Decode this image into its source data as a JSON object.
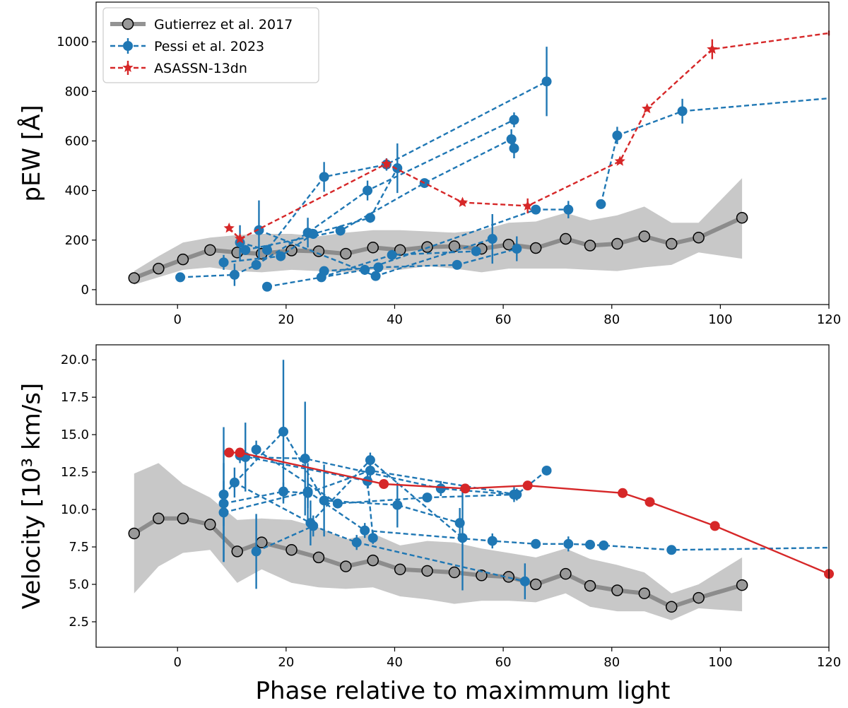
{
  "chart_data": [
    {
      "type": "line",
      "panel": "top",
      "xlabel": "",
      "ylabel": "pEW [Å]",
      "xlim": [
        -15,
        120
      ],
      "ylim": [
        -60,
        1160
      ],
      "xticks": [
        0,
        20,
        40,
        60,
        80,
        100,
        120
      ],
      "yticks": [
        0,
        200,
        400,
        600,
        800,
        1000
      ],
      "legend": {
        "placement": "top-left",
        "entries": [
          {
            "label": "Gutierrez et al. 2017",
            "style": "template",
            "color": "#888888"
          },
          {
            "label": "Pessi et al. 2023",
            "style": "blue",
            "color": "#1f77b4"
          },
          {
            "label": "ASASSN-13dn",
            "style": "red",
            "color": "#d62728"
          }
        ]
      },
      "template": {
        "name": "Gutierrez et al. 2017",
        "color": "#888888",
        "x": [
          -8,
          -3.5,
          1,
          6,
          11,
          15.5,
          21,
          26,
          31,
          36,
          41,
          46,
          51,
          56,
          61,
          66,
          71.5,
          76,
          81,
          86,
          91,
          96,
          104
        ],
        "y": [
          47,
          85,
          122,
          160,
          150,
          145,
          158,
          155,
          145,
          170,
          160,
          172,
          175,
          165,
          182,
          168,
          205,
          178,
          185,
          215,
          185,
          210,
          290
        ],
        "band_lower": [
          20,
          50,
          80,
          90,
          75,
          70,
          80,
          75,
          70,
          80,
          80,
          95,
          85,
          70,
          85,
          85,
          85,
          80,
          75,
          90,
          100,
          150,
          125
        ],
        "band_upper": [
          75,
          135,
          190,
          210,
          220,
          225,
          225,
          215,
          230,
          240,
          240,
          235,
          230,
          240,
          270,
          275,
          310,
          280,
          300,
          335,
          270,
          270,
          450
        ]
      },
      "series": [
        {
          "name": "Pessi et al. 2023",
          "color": "#1f77b4",
          "x": [
            0.5,
            10.5,
            14.5,
            24,
            35,
            62
          ],
          "y": [
            50,
            60,
            100,
            230,
            400,
            685
          ],
          "yerr": [
            10,
            45,
            15,
            60,
            40,
            30
          ]
        },
        {
          "color": "#1f77b4",
          "x": [
            8.5,
            19,
            25,
            35.5,
            40.5
          ],
          "y": [
            110,
            135,
            225,
            290,
            490
          ],
          "yerr": [
            30,
            15,
            20,
            20,
            100
          ]
        },
        {
          "color": "#1f77b4",
          "x": [
            11.5,
            16.5,
            27,
            38.5,
            68
          ],
          "y": [
            190,
            160,
            455,
            505,
            840
          ],
          "yerr": [
            70,
            20,
            60,
            25,
            140
          ]
        },
        {
          "color": "#1f77b4",
          "x": [
            12.5,
            30,
            45.5,
            61.5,
            62
          ],
          "y": [
            160,
            238,
            430,
            607,
            570
          ],
          "yerr": [
            20,
            15,
            15,
            40,
            40
          ]
        },
        {
          "color": "#1f77b4",
          "x": [
            15,
            36.5,
            58
          ],
          "y": [
            240,
            55,
            205
          ],
          "yerr": [
            120,
            15,
            100
          ]
        },
        {
          "color": "#1f77b4",
          "x": [
            16.5,
            34.5,
            66,
            72
          ],
          "y": [
            12,
            80,
            323,
            323
          ],
          "yerr": [
            5,
            20,
            15,
            35
          ]
        },
        {
          "color": "#1f77b4",
          "x": [
            26.5,
            39.5,
            55
          ],
          "y": [
            50,
            140,
            155
          ],
          "yerr": [
            10,
            20,
            15
          ]
        },
        {
          "color": "#1f77b4",
          "x": [
            27,
            37,
            51.5,
            62.5
          ],
          "y": [
            75,
            90,
            100,
            165
          ],
          "yerr": [
            15,
            15,
            15,
            50
          ]
        },
        {
          "color": "#1f77b4",
          "x": [
            78,
            81,
            93,
            120
          ],
          "y": [
            345,
            622,
            720,
            772
          ],
          "yerr": [
            10,
            35,
            50,
            0
          ]
        }
      ],
      "asassn": {
        "name": "ASASSN-13dn",
        "color": "#d62728",
        "x": [
          9.5,
          11.5,
          38.5,
          52.5,
          64.5,
          81.5,
          86.5,
          98.5,
          120
        ],
        "y": [
          248,
          205,
          508,
          352,
          338,
          518,
          730,
          970,
          1035
        ],
        "yerr": [
          10,
          10,
          20,
          10,
          30,
          10,
          10,
          40,
          10
        ]
      }
    },
    {
      "type": "line",
      "panel": "bottom",
      "xlabel": "Phase relative to maximmum light",
      "ylabel": "Velocity [10³ km/s]",
      "xlim": [
        -15,
        120
      ],
      "ylim": [
        0.8,
        21.0
      ],
      "xticks": [
        0,
        20,
        40,
        60,
        80,
        100,
        120
      ],
      "yticks": [
        2.5,
        5.0,
        7.5,
        10.0,
        12.5,
        15.0,
        17.5,
        20.0
      ],
      "template": {
        "color": "#888888",
        "x": [
          -8,
          -3.5,
          1,
          6,
          11,
          15.5,
          21,
          26,
          31,
          36,
          41,
          46,
          51,
          56,
          61,
          66,
          71.5,
          76,
          81,
          86,
          91,
          96,
          104
        ],
        "y": [
          8.4,
          9.4,
          9.4,
          9.0,
          7.2,
          7.8,
          7.3,
          6.8,
          6.2,
          6.6,
          6.0,
          5.9,
          5.8,
          5.6,
          5.5,
          5.0,
          5.7,
          4.9,
          4.6,
          4.4,
          3.5,
          4.1,
          4.95
        ],
        "band_lower": [
          4.4,
          6.2,
          7.1,
          7.3,
          5.1,
          6.0,
          5.1,
          4.8,
          4.7,
          4.8,
          4.2,
          4.0,
          3.7,
          3.9,
          3.9,
          3.8,
          4.4,
          3.5,
          3.2,
          3.2,
          2.6,
          3.4,
          3.2
        ],
        "band_upper": [
          12.4,
          13.1,
          11.7,
          10.8,
          9.3,
          9.4,
          9.3,
          8.8,
          8.0,
          8.4,
          7.6,
          7.9,
          7.8,
          7.4,
          7.1,
          6.8,
          7.4,
          6.7,
          6.3,
          5.8,
          4.4,
          5.0,
          6.8
        ]
      },
      "series": [
        {
          "color": "#1f77b4",
          "x": [
            8.5,
            19.5,
            24,
            35.5,
            62.5,
            68
          ],
          "y": [
            10.4,
            11.2,
            11.1,
            12.6,
            11.0,
            12.6
          ],
          "yerr": [
            1.5,
            0.6,
            1.0,
            0.9,
            0.4,
            0.3
          ]
        },
        {
          "color": "#1f77b4",
          "x": [
            8.5,
            19.5,
            27,
            40.5,
            52
          ],
          "y": [
            11.0,
            15.2,
            10.6,
            10.3,
            9.1
          ],
          "yerr": [
            4.5,
            4.8,
            2.4,
            1.5,
            1.0
          ]
        },
        {
          "color": "#1f77b4",
          "x": [
            10.5,
            24.5,
            35.5,
            52.5
          ],
          "y": [
            11.8,
            9.1,
            13.3,
            8.1
          ],
          "yerr": [
            1.0,
            1.5,
            0.5,
            3.5
          ]
        },
        {
          "color": "#1f77b4",
          "x": [
            12.5,
            23.5,
            48.5,
            62
          ],
          "y": [
            13.5,
            13.4,
            11.4,
            11.0
          ],
          "yerr": [
            2.3,
            3.8,
            0.5,
            0.3
          ]
        },
        {
          "color": "#1f77b4",
          "x": [
            14.5,
            29.5,
            46,
            62
          ],
          "y": [
            14.0,
            10.4,
            10.8,
            11.0
          ],
          "yerr": [
            0.6,
            0.3,
            0.3,
            0.5
          ]
        },
        {
          "color": "#1f77b4",
          "x": [
            8.5,
            24,
            34.5,
            58,
            66,
            72,
            76,
            78.5,
            91,
            120
          ],
          "y": [
            9.8,
            11.2,
            8.6,
            7.9,
            7.7,
            7.7,
            7.65,
            7.6,
            7.3,
            7.45
          ],
          "yerr": [
            3.3,
            1.9,
            0.5,
            0.5,
            0.3,
            0.5,
            0.3,
            0.3,
            0.3,
            0
          ]
        },
        {
          "color": "#1f77b4",
          "x": [
            14.5,
            25,
            33,
            64
          ],
          "y": [
            7.2,
            8.9,
            7.8,
            5.2
          ],
          "yerr": [
            2.5,
            0.7,
            0.5,
            1.2
          ]
        },
        {
          "color": "#1f77b4",
          "x": [
            11.5,
            35,
            36
          ],
          "y": [
            13.6,
            11.9,
            8.1
          ],
          "yerr": [
            0.5,
            0.5,
            0.4
          ]
        }
      ],
      "asassn": {
        "color": "#d62728",
        "x": [
          9.5,
          11.5,
          38,
          53,
          64.5,
          82,
          87,
          99,
          120
        ],
        "y": [
          13.8,
          13.8,
          11.7,
          11.4,
          11.6,
          11.1,
          10.5,
          8.9,
          5.7
        ]
      }
    }
  ]
}
